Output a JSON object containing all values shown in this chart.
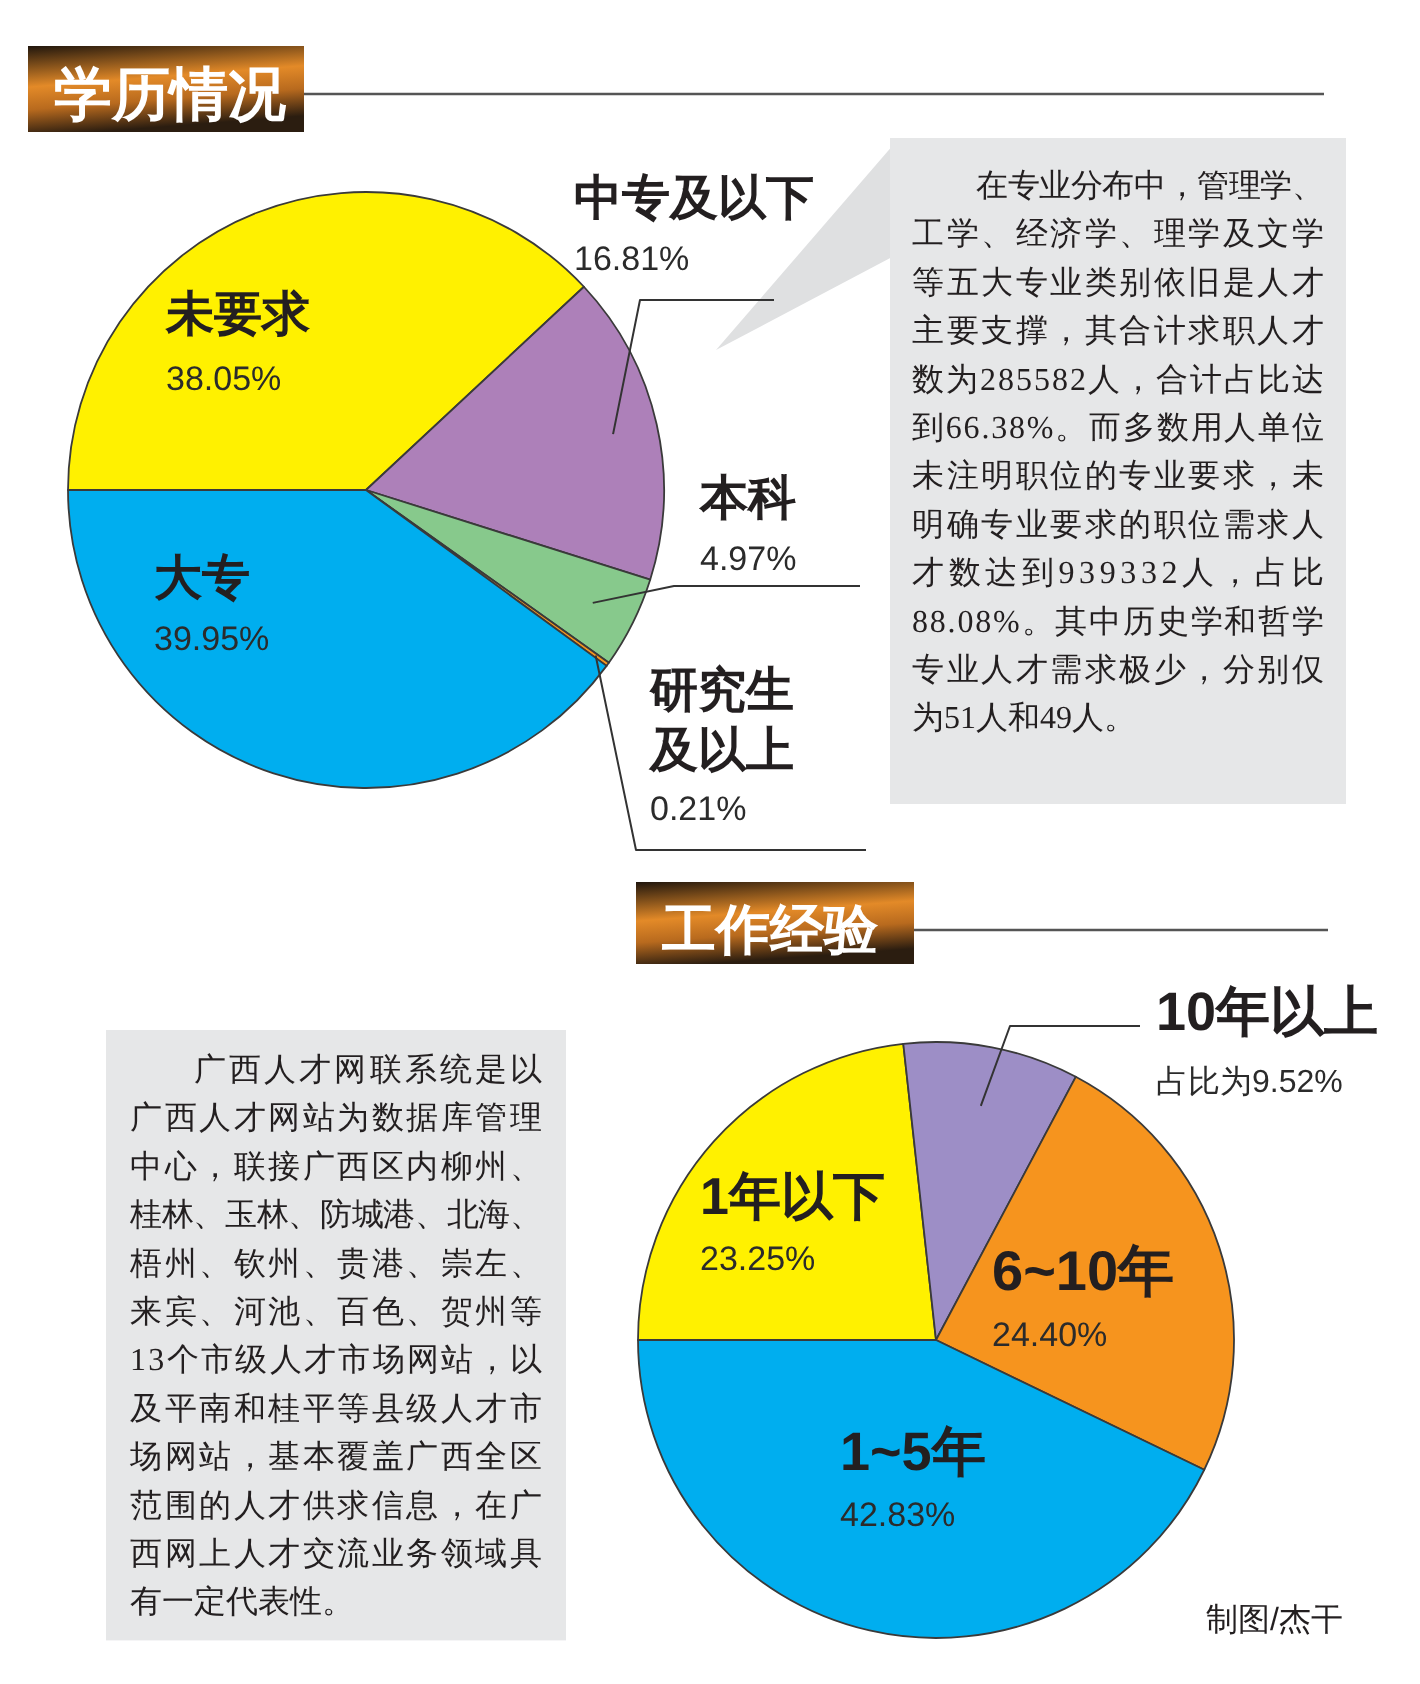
{
  "chart_data": [
    {
      "type": "pie",
      "title": "学历情况",
      "categories": [
        "未要求",
        "中专及以下",
        "本科",
        "研究生及以上",
        "大专"
      ],
      "values": [
        38.05,
        16.81,
        4.97,
        0.21,
        39.95
      ],
      "colors": [
        "#fff100",
        "#ad80b9",
        "#87c98c",
        "#f7941d",
        "#00aeef"
      ],
      "value_labels": [
        "38.05%",
        "16.81%",
        "4.97%",
        "0.21%",
        "39.95%"
      ],
      "annotations": [
        "在专业分布中，管理学、工学、经济学、理学及文学等五大专业类别依旧是人才主要支撑，其合计求职人才数为285582人，合计占比达到66.38%。而多数用人单位未注明职位的专业要求，未明确专业要求的职位需求人才数达到939332人，占比88.08%。其中历史学和哲学专业人才需求极少，分别仅为51人和49人。"
      ]
    },
    {
      "type": "pie",
      "title": "工作经验",
      "categories": [
        "1年以下",
        "10年以上",
        "6~10年",
        "1~5年"
      ],
      "values": [
        23.25,
        9.52,
        24.4,
        42.83
      ],
      "colors": [
        "#fff100",
        "#9d8ec6",
        "#f6941e",
        "#00aeef"
      ],
      "value_labels": [
        "23.25%",
        "占比为9.52%",
        "24.40%",
        "42.83%"
      ],
      "annotations": [
        "广西人才网联系统是以广西人才网站为数据库管理中心，联接广西区内柳州、桂林、玉林、防城港、北海、梧州、钦州、贵港、崇左、来宾、河池、百色、贺州等13个市级人才市场网站，以及平南和桂平等县级人才市场网站，基本覆盖广西全区范围的人才供求信息，在广西网上人才交流业务领域具有一定代表性。",
        "制图/杰干"
      ]
    }
  ]
}
